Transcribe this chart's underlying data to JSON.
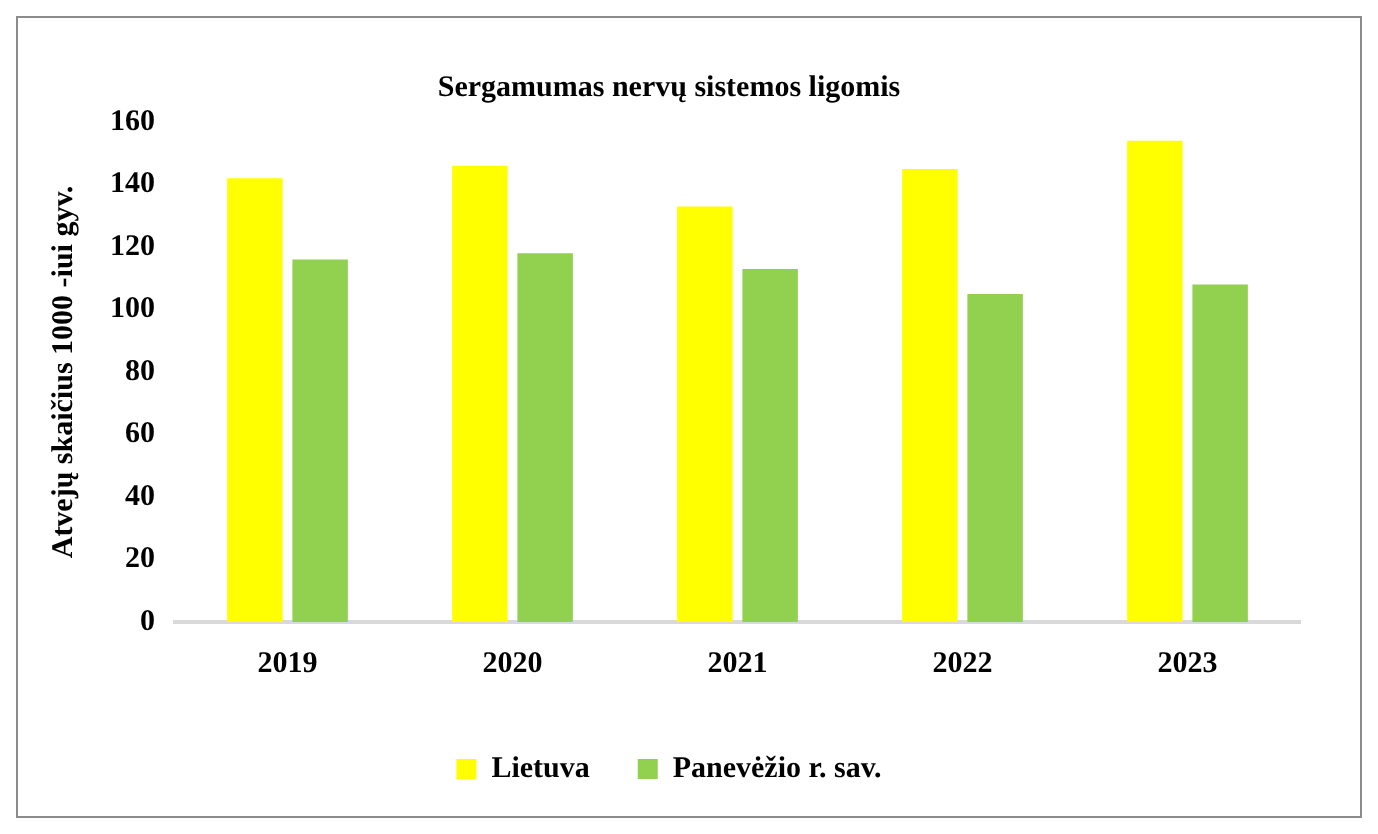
{
  "chart_data": {
    "type": "bar",
    "title": "Sergamumas nervų sistemos ligomis",
    "ylabel": "Atvejų skaičius 1000 -iui gyv.",
    "categories": [
      "2019",
      "2020",
      "2021",
      "2022",
      "2023"
    ],
    "series": [
      {
        "name": "Lietuva",
        "color": "#ffff00",
        "values": [
          142,
          146,
          133,
          145,
          154
        ]
      },
      {
        "name": "Panevėžio r. sav.",
        "color": "#92d050",
        "values": [
          116,
          118,
          113,
          105,
          108
        ]
      }
    ],
    "ylim": [
      0,
      160
    ],
    "yticks": [
      0,
      20,
      40,
      60,
      80,
      100,
      120,
      140,
      160
    ],
    "grid": false,
    "legend": "bottom"
  }
}
